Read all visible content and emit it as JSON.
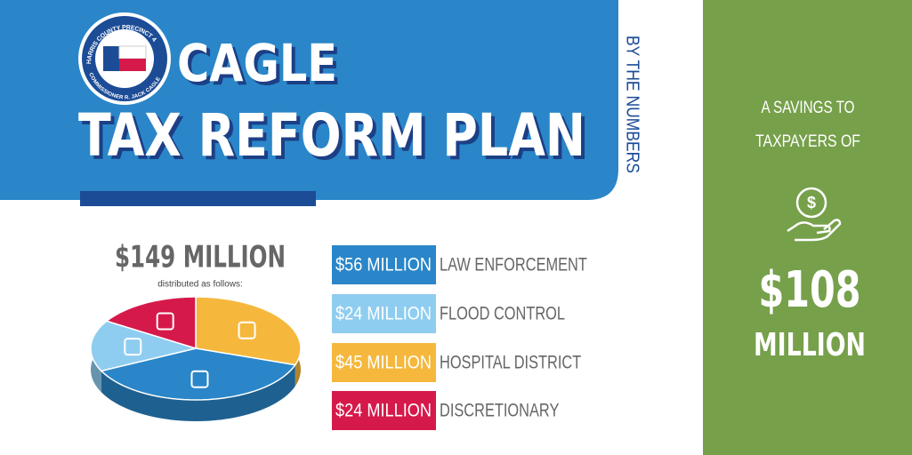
{
  "logo": {
    "top": "HARRIS COUNTY PRECINCT 4",
    "bottom": "COMMISSIONER R. JACK CAGLE"
  },
  "header": {
    "line1": "CAGLE",
    "line2": "TAX REFORM PLAN",
    "side": "BY THE NUMBERS"
  },
  "savings": {
    "intro1": "A SAVINGS TO",
    "intro2": "TAXPAYERS OF",
    "amount": "$108",
    "unit": "MILLION"
  },
  "chart_data": {
    "type": "pie",
    "title": "$149 MILLION",
    "subtitle": "distributed as follows:",
    "categories": [
      "LAW ENFORCEMENT",
      "FLOOD CONTROL",
      "HOSPITAL DISTRICT",
      "DISCRETIONARY"
    ],
    "values": [
      56,
      24,
      45,
      24
    ],
    "value_labels": [
      "$56 MILLION",
      "$24 MILLION",
      "$45 MILLION",
      "$24 MILLION"
    ],
    "colors": [
      "#2a86c8",
      "#8fcdf0",
      "#f5b83d",
      "#d6194b"
    ]
  }
}
